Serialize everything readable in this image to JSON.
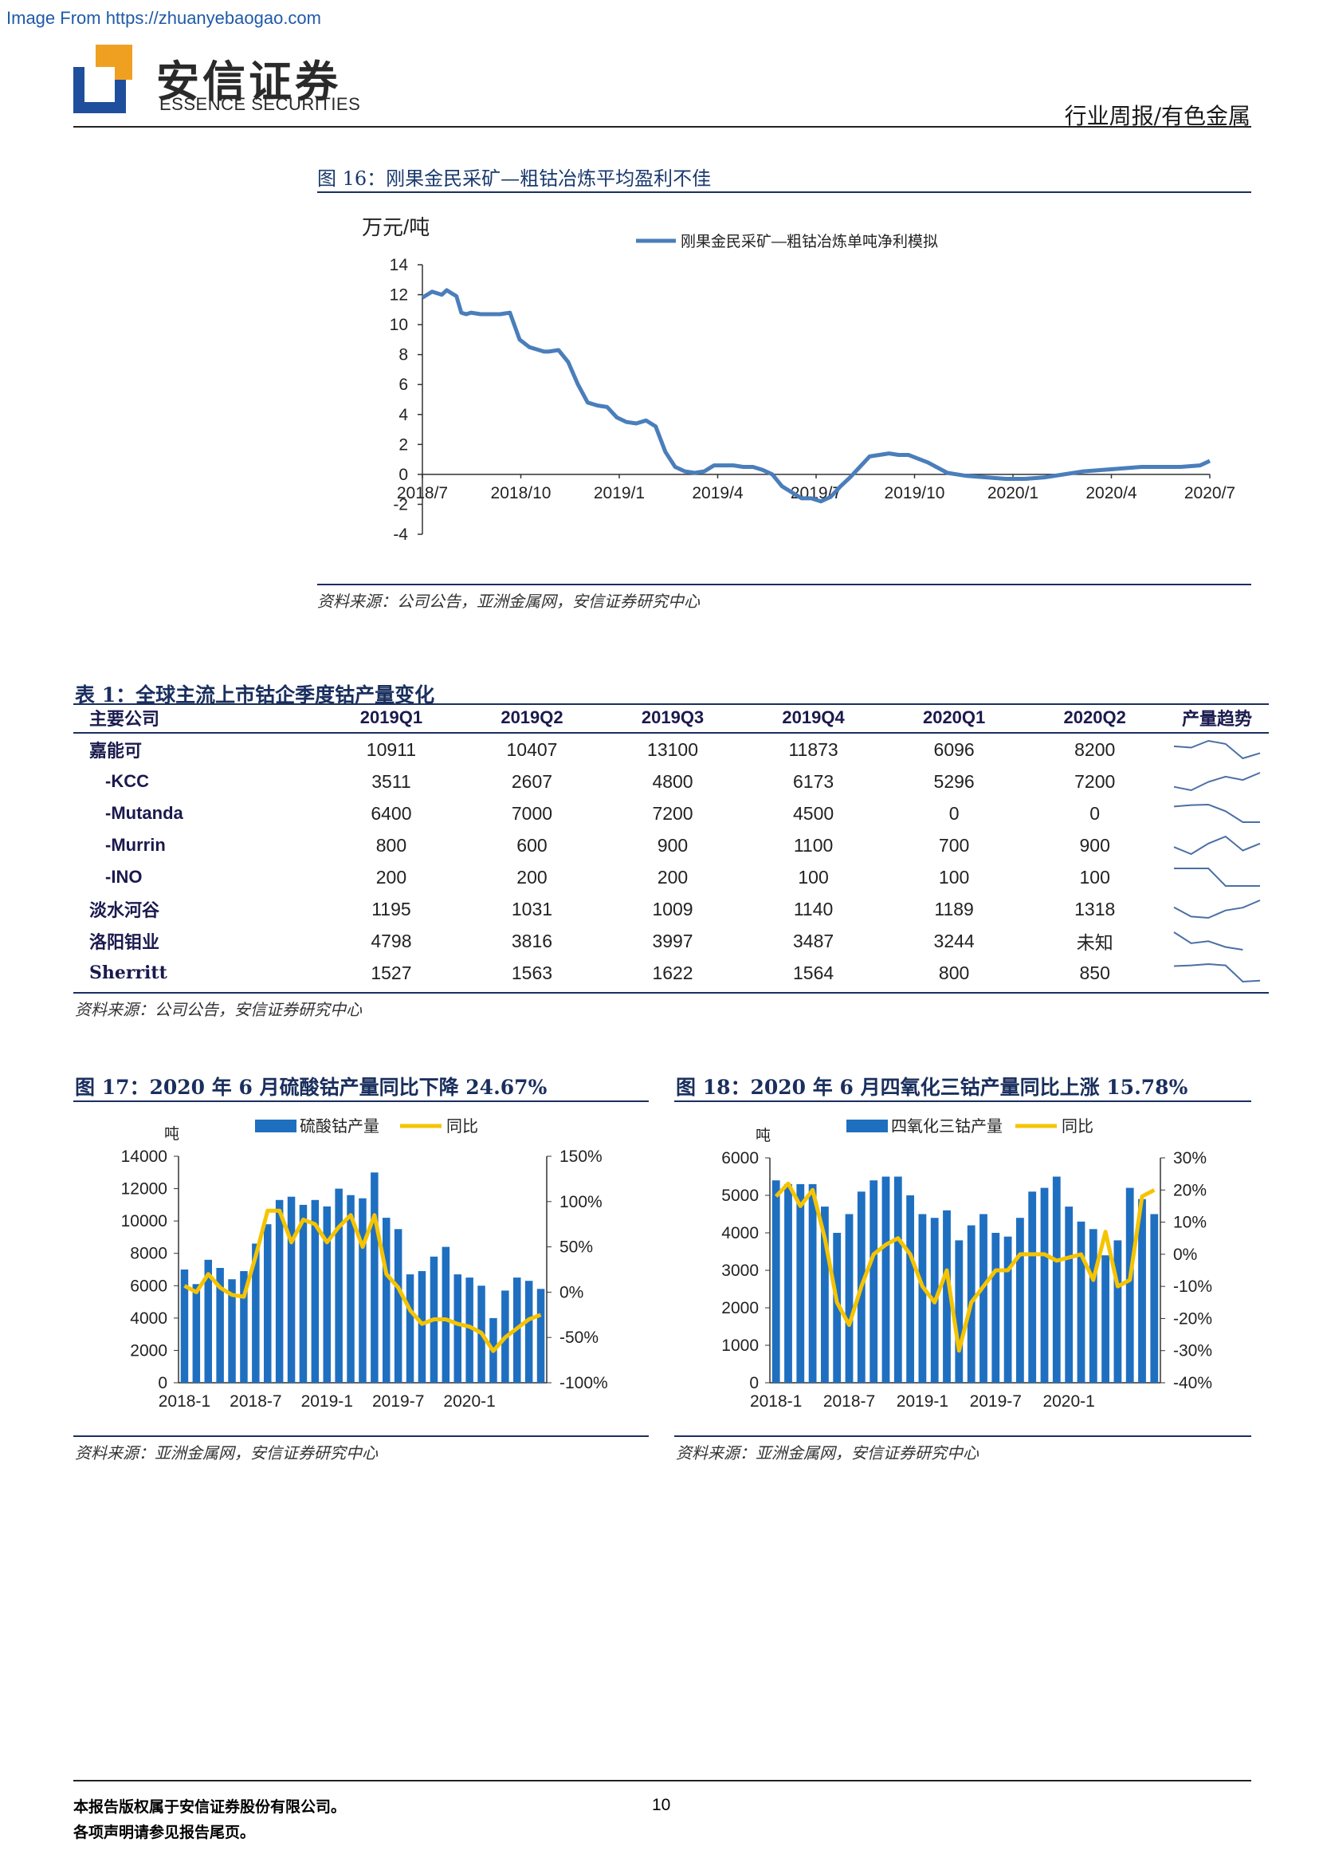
{
  "watermark": "Image From https://zhuanyebaogao.com",
  "header": {
    "logo_cn": "安信证券",
    "logo_en": "ESSENCE SECURITIES",
    "section": "行业周报/有色金属",
    "brand_colors": {
      "blue": "#1f4e9c",
      "orange": "#f0a020",
      "navy": "#1a2f5e"
    }
  },
  "fig16": {
    "title": "图 16：刚果金民采矿—粗钴冶炼平均盈利不佳",
    "source": "资料来源：公司公告，亚洲金属网，安信证券研究中心",
    "chart_data": {
      "type": "line",
      "ylabel": "万元/吨",
      "ylim": [
        -4,
        14
      ],
      "yticks": [
        "14",
        "12",
        "10",
        "8",
        "6",
        "4",
        "2",
        "0",
        "-2",
        "-4"
      ],
      "xticks": [
        "2018/7",
        "2018/10",
        "2019/1",
        "2019/4",
        "2019/7",
        "2019/10",
        "2020/1",
        "2020/4",
        "2020/7"
      ],
      "series": [
        {
          "name": "刚果金民采矿—粗钴冶炼单吨净利模拟",
          "color": "#4a7ebb",
          "x": [
            0,
            0.1,
            0.2,
            0.25,
            0.3,
            0.35,
            0.4,
            0.45,
            0.5,
            0.6,
            0.8,
            0.9,
            1.0,
            1.1,
            1.2,
            1.25,
            1.3,
            1.4,
            1.5,
            1.6,
            1.7,
            1.8,
            1.9,
            2.0,
            2.1,
            2.2,
            2.3,
            2.4,
            2.5,
            2.6,
            2.7,
            2.8,
            2.9,
            3.0,
            3.1,
            3.2,
            3.3,
            3.4,
            3.5,
            3.6,
            3.7,
            3.8,
            3.9,
            4.0,
            4.1,
            4.2,
            4.3,
            4.4,
            4.5,
            4.6,
            4.7,
            4.8,
            4.9,
            5.0,
            5.2,
            5.4,
            5.6,
            5.8,
            6.0,
            6.2,
            6.4,
            6.6,
            6.8,
            7.0,
            7.2,
            7.4,
            7.6,
            7.8,
            8.0,
            8.1
          ],
          "values": [
            11.8,
            12.2,
            12.0,
            12.3,
            12.1,
            11.9,
            10.8,
            10.7,
            10.8,
            10.7,
            10.7,
            10.8,
            9.0,
            8.5,
            8.3,
            8.2,
            8.2,
            8.3,
            7.5,
            6.0,
            4.8,
            4.6,
            4.5,
            3.8,
            3.5,
            3.4,
            3.6,
            3.2,
            1.5,
            0.5,
            0.2,
            0.1,
            0.2,
            0.6,
            0.6,
            0.6,
            0.5,
            0.5,
            0.3,
            0.0,
            -0.8,
            -1.2,
            -1.6,
            -1.6,
            -1.8,
            -1.5,
            -0.8,
            -0.2,
            0.5,
            1.2,
            1.3,
            1.4,
            1.3,
            1.3,
            0.8,
            0.1,
            -0.1,
            -0.2,
            -0.3,
            -0.3,
            -0.2,
            0.0,
            0.2,
            0.3,
            0.4,
            0.5,
            0.5,
            0.5,
            0.6,
            0.9
          ]
        }
      ]
    }
  },
  "table1": {
    "title": "表 1：全球主流上市钴企季度钴产量变化",
    "headers": [
      "主要公司",
      "2019Q1",
      "2019Q2",
      "2019Q3",
      "2019Q4",
      "2020Q1",
      "2020Q2",
      "产量趋势"
    ],
    "rows": [
      {
        "company": "嘉能可",
        "values": [
          "10911",
          "10407",
          "13100",
          "11873",
          "6096",
          "8200"
        ],
        "sub": false
      },
      {
        "company": "-KCC",
        "values": [
          "3511",
          "2607",
          "4800",
          "6173",
          "5296",
          "7200"
        ],
        "sub": true
      },
      {
        "company": "-Mutanda",
        "values": [
          "6400",
          "7000",
          "7200",
          "4500",
          "0",
          "0"
        ],
        "sub": true
      },
      {
        "company": "-Murrin",
        "values": [
          "800",
          "600",
          "900",
          "1100",
          "700",
          "900"
        ],
        "sub": true
      },
      {
        "company": "-INO",
        "values": [
          "200",
          "200",
          "200",
          "100",
          "100",
          "100"
        ],
        "sub": true
      },
      {
        "company": "淡水河谷",
        "values": [
          "1195",
          "1031",
          "1009",
          "1140",
          "1189",
          "1318"
        ],
        "sub": false
      },
      {
        "company": "洛阳钼业",
        "values": [
          "4798",
          "3816",
          "3997",
          "3487",
          "3244",
          "未知"
        ],
        "sub": false
      },
      {
        "company": "Sherritt",
        "values": [
          "1527",
          "1563",
          "1622",
          "1564",
          "800",
          "850"
        ],
        "sub": false
      }
    ],
    "source": "资料来源：公司公告，安信证券研究中心"
  },
  "fig17": {
    "title": "图 17：2020 年 6 月硫酸钴产量同比下降 24.67%",
    "source": "资料来源：亚洲金属网，安信证券研究中心",
    "chart_data": {
      "type": "bar",
      "ylabel": "吨",
      "ylim": [
        0,
        14000
      ],
      "yticks": [
        "14000",
        "12000",
        "10000",
        "8000",
        "6000",
        "4000",
        "2000",
        "0"
      ],
      "y2lim": [
        -100,
        150
      ],
      "y2ticks": [
        "150%",
        "100%",
        "50%",
        "0%",
        "-50%",
        "-100%"
      ],
      "xticks": [
        "2018-1",
        "2018-7",
        "2019-1",
        "2019-7",
        "2020-1"
      ],
      "series": [
        {
          "name": "硫酸钴产量",
          "color": "#1f6fc1",
          "values": [
            7000,
            6100,
            7600,
            7100,
            6400,
            6900,
            8600,
            9800,
            11300,
            11500,
            11000,
            11300,
            10900,
            12000,
            11600,
            11400,
            13000,
            10200,
            9500,
            6700,
            6900,
            7800,
            8400,
            6700,
            6500,
            6000,
            4000,
            5700,
            6500,
            6300,
            5800
          ]
        },
        {
          "name": "同比",
          "color": "#f5c400",
          "values": [
            7,
            0,
            20,
            5,
            -3,
            -5,
            40,
            90,
            90,
            55,
            80,
            75,
            55,
            72,
            85,
            50,
            85,
            20,
            5,
            -20,
            -35,
            -30,
            -30,
            -35,
            -38,
            -45,
            -65,
            -50,
            -40,
            -30,
            -25
          ]
        }
      ]
    }
  },
  "fig18": {
    "title": "图 18：2020 年 6 月四氧化三钴产量同比上涨 15.78%",
    "source": "资料来源：亚洲金属网，安信证券研究中心",
    "chart_data": {
      "type": "bar",
      "ylabel": "吨",
      "ylim": [
        0,
        6000
      ],
      "yticks": [
        "6000",
        "5000",
        "4000",
        "3000",
        "2000",
        "1000",
        "0"
      ],
      "y2lim": [
        -40,
        30
      ],
      "y2ticks": [
        "30%",
        "20%",
        "10%",
        "0%",
        "-10%",
        "-20%",
        "-30%",
        "-40%"
      ],
      "xticks": [
        "2018-1",
        "2018-7",
        "2019-1",
        "2019-7",
        "2020-1"
      ],
      "series": [
        {
          "name": "四氧化三钴产量",
          "color": "#1f6fc1",
          "values": [
            5400,
            5300,
            5300,
            5300,
            4700,
            4000,
            4500,
            5100,
            5400,
            5500,
            5500,
            5000,
            4500,
            4400,
            4600,
            3800,
            4200,
            4500,
            4000,
            3900,
            4400,
            5100,
            5200,
            5500,
            4700,
            4300,
            4100,
            3400,
            3800,
            5200,
            4900,
            4500
          ]
        },
        {
          "name": "同比",
          "color": "#f5c400",
          "values": [
            18,
            22,
            15,
            20,
            5,
            -15,
            -22,
            -10,
            0,
            3,
            5,
            0,
            -10,
            -15,
            -5,
            -30,
            -15,
            -10,
            -5,
            -5,
            0,
            0,
            0,
            -2,
            -1,
            0,
            -8,
            7,
            -10,
            -8,
            18,
            20
          ]
        }
      ]
    }
  },
  "footer": {
    "line1": "本报告版权属于安信证券股份有限公司。",
    "line2": "各项声明请参见报告尾页。",
    "page": "10"
  }
}
